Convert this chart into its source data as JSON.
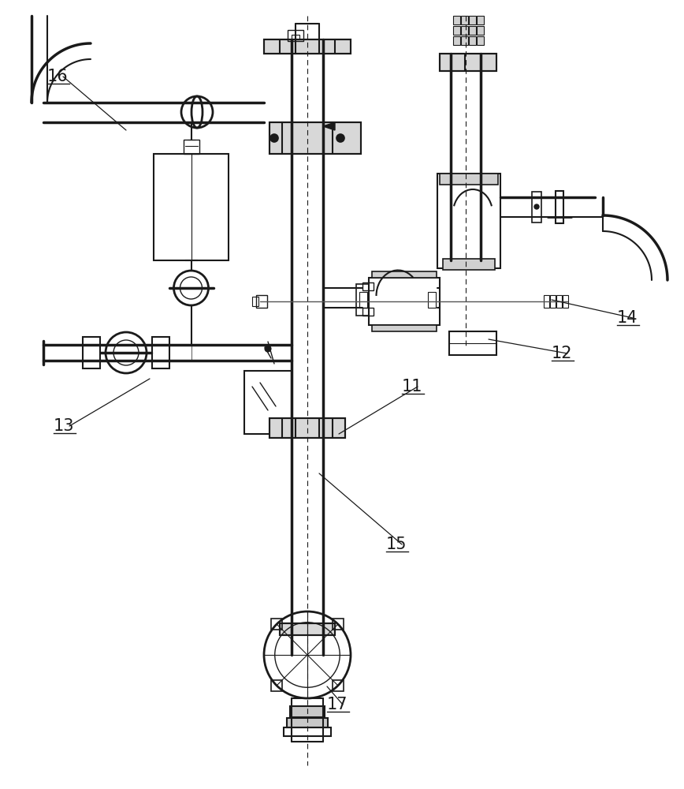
{
  "bg_color": "#ffffff",
  "lc": "#1a1a1a",
  "lw": 1.5,
  "tlw": 2.5
}
